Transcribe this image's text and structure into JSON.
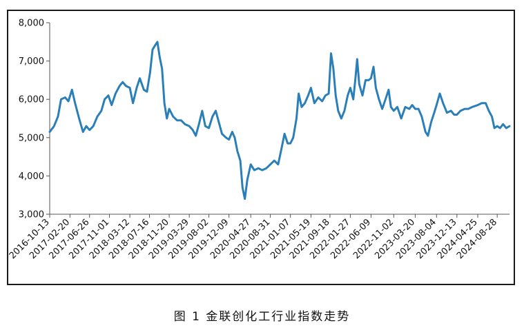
{
  "figure": {
    "caption": "图 1  金联创化工行业指数走势"
  },
  "chart_data": {
    "type": "line",
    "title": "",
    "xlabel": "",
    "ylabel": "",
    "ylim": [
      3000,
      8000
    ],
    "yticks": [
      {
        "value": 3000,
        "label": "3,000"
      },
      {
        "value": 4000,
        "label": "4,000"
      },
      {
        "value": 5000,
        "label": "5,000"
      },
      {
        "value": 6000,
        "label": "6,000"
      },
      {
        "value": 7000,
        "label": "7,000"
      },
      {
        "value": 8000,
        "label": "8,000"
      }
    ],
    "xrange": [
      "2016-10-13",
      "2024-11-15"
    ],
    "xticks": [
      "2016-10-13",
      "2017-02-20",
      "2017-06-26",
      "2017-11-01",
      "2018-03-12",
      "2018-07-16",
      "2018-11-20",
      "2019-03-29",
      "2019-08-02",
      "2019-12-09",
      "2020-04-27",
      "2020-08-31",
      "2021-01-07",
      "2021-05-19",
      "2021-09-18",
      "2022-01-27",
      "2022-06-09",
      "2022-11-02",
      "2023-03-20",
      "2023-08-04",
      "2023-12-13",
      "2024-04-25",
      "2024-08-28"
    ],
    "grid": false,
    "line_color": "#2a7fb8",
    "axis_color": "#555555",
    "series": [
      {
        "name": "",
        "points": [
          {
            "x": "2016-10-13",
            "y": 5150
          },
          {
            "x": "2016-11-10",
            "y": 5300
          },
          {
            "x": "2016-12-05",
            "y": 5550
          },
          {
            "x": "2016-12-25",
            "y": 6000
          },
          {
            "x": "2017-01-20",
            "y": 6050
          },
          {
            "x": "2017-02-10",
            "y": 5950
          },
          {
            "x": "2017-03-05",
            "y": 6250
          },
          {
            "x": "2017-03-25",
            "y": 5900
          },
          {
            "x": "2017-04-20",
            "y": 5500
          },
          {
            "x": "2017-05-15",
            "y": 5150
          },
          {
            "x": "2017-06-05",
            "y": 5300
          },
          {
            "x": "2017-06-26",
            "y": 5200
          },
          {
            "x": "2017-07-20",
            "y": 5300
          },
          {
            "x": "2017-08-15",
            "y": 5550
          },
          {
            "x": "2017-09-10",
            "y": 5700
          },
          {
            "x": "2017-10-01",
            "y": 6000
          },
          {
            "x": "2017-10-25",
            "y": 6100
          },
          {
            "x": "2017-11-15",
            "y": 5850
          },
          {
            "x": "2017-12-10",
            "y": 6150
          },
          {
            "x": "2018-01-05",
            "y": 6350
          },
          {
            "x": "2018-01-25",
            "y": 6450
          },
          {
            "x": "2018-02-15",
            "y": 6350
          },
          {
            "x": "2018-03-12",
            "y": 6300
          },
          {
            "x": "2018-04-01",
            "y": 5900
          },
          {
            "x": "2018-04-25",
            "y": 6300
          },
          {
            "x": "2018-05-15",
            "y": 6550
          },
          {
            "x": "2018-06-10",
            "y": 6250
          },
          {
            "x": "2018-06-30",
            "y": 6200
          },
          {
            "x": "2018-07-20",
            "y": 6700
          },
          {
            "x": "2018-08-05",
            "y": 7300
          },
          {
            "x": "2018-08-20",
            "y": 7400
          },
          {
            "x": "2018-09-05",
            "y": 7500
          },
          {
            "x": "2018-09-20",
            "y": 7100
          },
          {
            "x": "2018-10-05",
            "y": 6800
          },
          {
            "x": "2018-10-20",
            "y": 5900
          },
          {
            "x": "2018-11-05",
            "y": 5500
          },
          {
            "x": "2018-11-20",
            "y": 5750
          },
          {
            "x": "2018-12-15",
            "y": 5550
          },
          {
            "x": "2019-01-10",
            "y": 5450
          },
          {
            "x": "2019-02-05",
            "y": 5450
          },
          {
            "x": "2019-03-01",
            "y": 5350
          },
          {
            "x": "2019-03-29",
            "y": 5300
          },
          {
            "x": "2019-04-20",
            "y": 5200
          },
          {
            "x": "2019-05-10",
            "y": 5050
          },
          {
            "x": "2019-05-30",
            "y": 5350
          },
          {
            "x": "2019-06-20",
            "y": 5700
          },
          {
            "x": "2019-07-10",
            "y": 5300
          },
          {
            "x": "2019-08-02",
            "y": 5250
          },
          {
            "x": "2019-08-25",
            "y": 5550
          },
          {
            "x": "2019-09-15",
            "y": 5700
          },
          {
            "x": "2019-10-05",
            "y": 5400
          },
          {
            "x": "2019-10-25",
            "y": 5100
          },
          {
            "x": "2019-11-20",
            "y": 5000
          },
          {
            "x": "2019-12-09",
            "y": 4950
          },
          {
            "x": "2019-12-30",
            "y": 5150
          },
          {
            "x": "2020-01-15",
            "y": 5000
          },
          {
            "x": "2020-02-01",
            "y": 4650
          },
          {
            "x": "2020-02-20",
            "y": 4400
          },
          {
            "x": "2020-03-05",
            "y": 3700
          },
          {
            "x": "2020-03-20",
            "y": 3400
          },
          {
            "x": "2020-04-05",
            "y": 3900
          },
          {
            "x": "2020-04-27",
            "y": 4300
          },
          {
            "x": "2020-05-20",
            "y": 4150
          },
          {
            "x": "2020-06-15",
            "y": 4200
          },
          {
            "x": "2020-07-10",
            "y": 4150
          },
          {
            "x": "2020-08-05",
            "y": 4200
          },
          {
            "x": "2020-08-31",
            "y": 4300
          },
          {
            "x": "2020-09-25",
            "y": 4400
          },
          {
            "x": "2020-10-20",
            "y": 4300
          },
          {
            "x": "2020-11-10",
            "y": 4700
          },
          {
            "x": "2020-11-30",
            "y": 5100
          },
          {
            "x": "2020-12-20",
            "y": 4850
          },
          {
            "x": "2021-01-07",
            "y": 4850
          },
          {
            "x": "2021-01-25",
            "y": 5000
          },
          {
            "x": "2021-02-15",
            "y": 5500
          },
          {
            "x": "2021-03-01",
            "y": 6150
          },
          {
            "x": "2021-03-20",
            "y": 5800
          },
          {
            "x": "2021-04-10",
            "y": 5900
          },
          {
            "x": "2021-05-01",
            "y": 6100
          },
          {
            "x": "2021-05-19",
            "y": 6300
          },
          {
            "x": "2021-06-10",
            "y": 5900
          },
          {
            "x": "2021-07-05",
            "y": 6050
          },
          {
            "x": "2021-07-30",
            "y": 5950
          },
          {
            "x": "2021-08-20",
            "y": 6100
          },
          {
            "x": "2021-09-10",
            "y": 6150
          },
          {
            "x": "2021-09-25",
            "y": 7200
          },
          {
            "x": "2021-10-10",
            "y": 6800
          },
          {
            "x": "2021-10-25",
            "y": 6100
          },
          {
            "x": "2021-11-10",
            "y": 5700
          },
          {
            "x": "2021-11-30",
            "y": 5500
          },
          {
            "x": "2021-12-20",
            "y": 5700
          },
          {
            "x": "2022-01-10",
            "y": 6100
          },
          {
            "x": "2022-01-27",
            "y": 6300
          },
          {
            "x": "2022-02-15",
            "y": 6000
          },
          {
            "x": "2022-03-01",
            "y": 6550
          },
          {
            "x": "2022-03-12",
            "y": 7050
          },
          {
            "x": "2022-03-25",
            "y": 6400
          },
          {
            "x": "2022-04-15",
            "y": 6100
          },
          {
            "x": "2022-05-05",
            "y": 6500
          },
          {
            "x": "2022-05-25",
            "y": 6500
          },
          {
            "x": "2022-06-09",
            "y": 6550
          },
          {
            "x": "2022-06-25",
            "y": 6850
          },
          {
            "x": "2022-07-10",
            "y": 6300
          },
          {
            "x": "2022-07-30",
            "y": 6000
          },
          {
            "x": "2022-08-20",
            "y": 5750
          },
          {
            "x": "2022-09-10",
            "y": 6000
          },
          {
            "x": "2022-09-30",
            "y": 6250
          },
          {
            "x": "2022-10-15",
            "y": 5800
          },
          {
            "x": "2022-11-02",
            "y": 5700
          },
          {
            "x": "2022-11-25",
            "y": 5800
          },
          {
            "x": "2022-12-20",
            "y": 5500
          },
          {
            "x": "2023-01-15",
            "y": 5800
          },
          {
            "x": "2023-02-10",
            "y": 5750
          },
          {
            "x": "2023-03-01",
            "y": 5850
          },
          {
            "x": "2023-03-20",
            "y": 5750
          },
          {
            "x": "2023-04-10",
            "y": 5750
          },
          {
            "x": "2023-05-01",
            "y": 5550
          },
          {
            "x": "2023-05-25",
            "y": 5150
          },
          {
            "x": "2023-06-10",
            "y": 5050
          },
          {
            "x": "2023-06-30",
            "y": 5400
          },
          {
            "x": "2023-07-20",
            "y": 5650
          },
          {
            "x": "2023-08-04",
            "y": 5850
          },
          {
            "x": "2023-08-25",
            "y": 6150
          },
          {
            "x": "2023-09-15",
            "y": 5900
          },
          {
            "x": "2023-10-10",
            "y": 5650
          },
          {
            "x": "2023-11-05",
            "y": 5700
          },
          {
            "x": "2023-11-25",
            "y": 5600
          },
          {
            "x": "2023-12-13",
            "y": 5600
          },
          {
            "x": "2024-01-05",
            "y": 5700
          },
          {
            "x": "2024-02-01",
            "y": 5750
          },
          {
            "x": "2024-02-25",
            "y": 5750
          },
          {
            "x": "2024-03-20",
            "y": 5800
          },
          {
            "x": "2024-04-25",
            "y": 5850
          },
          {
            "x": "2024-05-20",
            "y": 5900
          },
          {
            "x": "2024-06-15",
            "y": 5900
          },
          {
            "x": "2024-07-05",
            "y": 5700
          },
          {
            "x": "2024-07-25",
            "y": 5550
          },
          {
            "x": "2024-08-10",
            "y": 5250
          },
          {
            "x": "2024-08-28",
            "y": 5300
          },
          {
            "x": "2024-09-15",
            "y": 5250
          },
          {
            "x": "2024-10-05",
            "y": 5350
          },
          {
            "x": "2024-10-25",
            "y": 5250
          },
          {
            "x": "2024-11-15",
            "y": 5300
          }
        ]
      }
    ]
  }
}
